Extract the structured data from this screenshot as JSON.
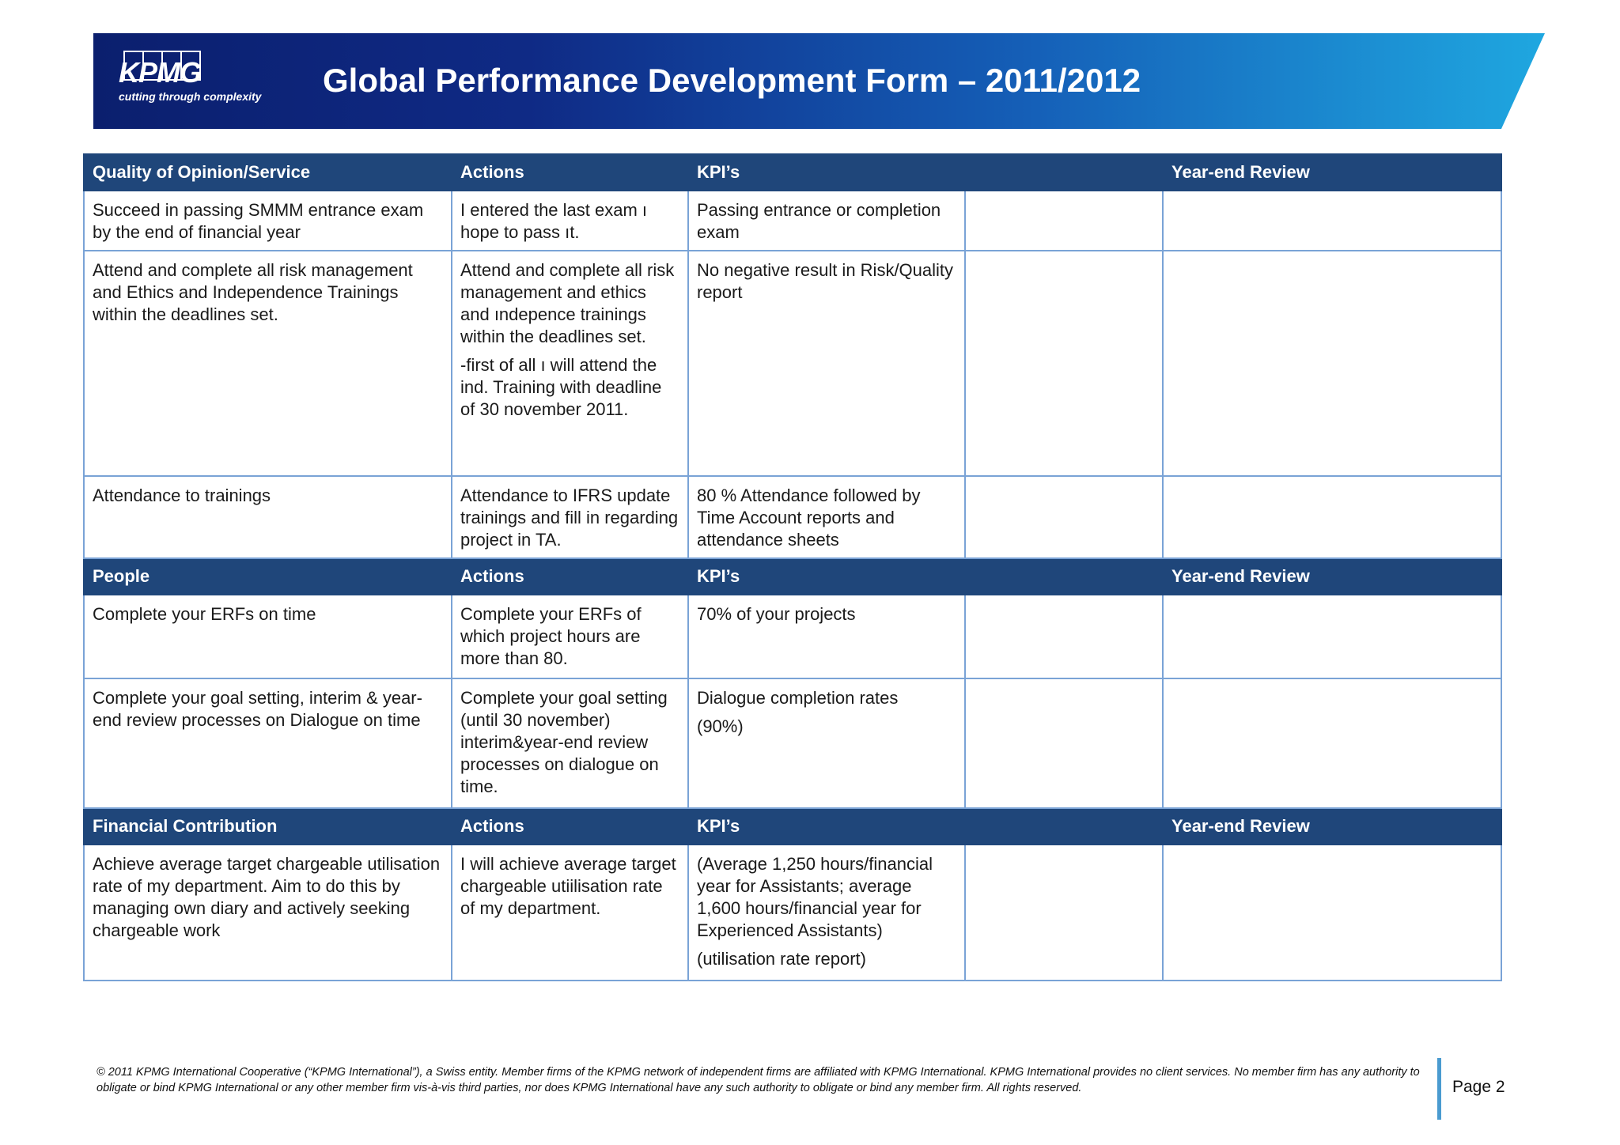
{
  "header": {
    "logo_text": "KPMG",
    "tagline": "cutting through complexity",
    "title": "Global Performance Development Form – 2011/2012"
  },
  "sections": [
    {
      "heading": "Quality of Opinion/Service",
      "actions_label": "Actions",
      "kpi_label": "KPI’s",
      "review_label": "Year-end Review",
      "rows": [
        {
          "objective": "Succeed in passing SMMM entrance exam by the end of financial year",
          "actions": [
            "I entered the last exam ı hope to pass ıt."
          ],
          "kpis": [
            "Passing entrance or completion exam"
          ]
        },
        {
          "objective": "Attend and complete all risk management and Ethics and Independence Trainings within the deadlines set.",
          "actions": [
            "Attend and complete all risk management and ethics and ındepence trainings within the deadlines set.",
            "-first of all ı will attend the ind. Training with deadline of 30 november 2011."
          ],
          "kpis": [
            "No negative result in Risk/Quality report"
          ]
        },
        {
          "objective": "Attendance to trainings",
          "actions": [
            "Attendance to IFRS update trainings and fill in regarding project in TA."
          ],
          "kpis": [
            "80 % Attendance followed by Time Account reports and attendance sheets"
          ]
        }
      ]
    },
    {
      "heading": "People",
      "actions_label": "Actions",
      "kpi_label": "KPI’s",
      "review_label": "Year-end Review",
      "rows": [
        {
          "objective": "Complete your ERFs on time",
          "actions": [
            "Complete your ERFs of which project hours are more than 80."
          ],
          "kpis": [
            "70% of your projects"
          ]
        },
        {
          "objective": "Complete your goal setting, interim & year-end review processes on Dialogue on time",
          "actions": [
            " Complete your goal setting (until 30 november) interim&year-end review processes on dialogue on time."
          ],
          "kpis": [
            "Dialogue completion rates",
            "(90%)"
          ]
        }
      ]
    },
    {
      "heading": "Financial Contribution",
      "actions_label": "Actions",
      "kpi_label": "KPI’s",
      "review_label": "Year-end Review",
      "rows": [
        {
          "objective": "Achieve average target chargeable utilisation rate of my department. Aim to do this by managing own diary and actively seeking chargeable work",
          "actions": [
            "I will achieve average target chargeable utiilisation rate of my department."
          ],
          "kpis": [
            "(Average 1,250 hours/financial year for Assistants; average 1,600 hours/financial year for Experienced Assistants)",
            "(utilisation rate report)"
          ]
        }
      ]
    }
  ],
  "footer": {
    "disclaimer": "© 2011 KPMG International Cooperative (“KPMG International”), a Swiss entity. Member firms of the KPMG network of independent firms are affiliated with KPMG International. KPMG International provides no client services. No member firm has any authority to obligate or bind KPMG International or any other member firm vis-à-vis third parties, nor does KPMG International have any such authority to obligate or bind any member firm. All rights reserved.",
    "page_label": "Page 2"
  },
  "colors": {
    "section_header_bg": "#1f467a",
    "table_border": "#7aa3d6",
    "banner_start": "#0b1f6e",
    "banner_end": "#1fa7e0"
  }
}
